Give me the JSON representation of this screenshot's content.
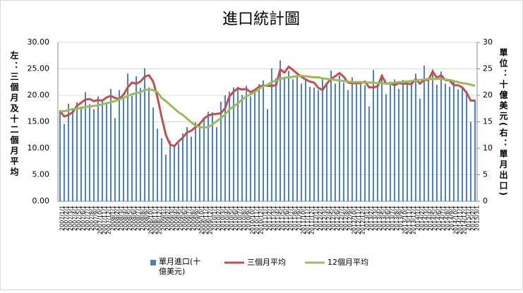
{
  "chart_data": {
    "type": "bar-line",
    "title": "進口統計圖",
    "y_label": "左：三個月及十二個月平均",
    "y2_label": "單位：十億美元(右：單月出口)",
    "categories": [
      "2007/1/1",
      "2007/2/1",
      "2007/3/1",
      "2007/4/1",
      "2007/5/1",
      "2007/6/1",
      "2007/7/1",
      "2007/8/1",
      "2007/9/1",
      "2007/10/1",
      "2007/11/1",
      "2007/12/1",
      "2008/1/1",
      "2008/2/1",
      "2008/3/1",
      "2008/4/1",
      "2008/5/1",
      "2008/6/1",
      "2008/7/1",
      "2008/8/1",
      "2008/9/1",
      "2008/10/1",
      "2008/11/1",
      "2008/12/1",
      "2009/1/1",
      "2009/2/1",
      "2009/3/1",
      "2009/4/1",
      "2009/5/1",
      "2009/6/1",
      "2009/7/1",
      "2009/8/1",
      "2009/9/1",
      "2009/10/1",
      "2009/11/1",
      "2009/12/1",
      "2010/1/1",
      "2010/2/1",
      "2010/3/1",
      "2010/4/1",
      "2010/5/1",
      "2010/6/1",
      "2010/7/1",
      "2010/8/1",
      "2010/9/1",
      "2010/10/1",
      "2010/11/1",
      "2010/12/1",
      "2011/1/1",
      "2011/2/1",
      "2011/3/1",
      "2011/4/1",
      "2011/5/1",
      "2011/6/1",
      "2011/7/1",
      "2011/8/1",
      "2011/9/1",
      "2011/10/1",
      "2011/11/1",
      "2011/12/1",
      "2012/1/1",
      "2012/2/1",
      "2012/3/1",
      "2012/4/1",
      "2012/5/1",
      "2012/6/1",
      "2012/7/1",
      "2012/8/1",
      "2012/9/1",
      "2012/10/1",
      "2012/11/1",
      "2012/12/1",
      "2013/1/1",
      "2013/2/1",
      "2013/3/1",
      "2013/4/1",
      "2013/5/1",
      "2013/6/1",
      "2013/7/1",
      "2013/8/1",
      "2013/9/1",
      "2013/10/1",
      "2013/11/1",
      "2013/12/1",
      "2014/1/1",
      "2014/2/1",
      "2014/3/1",
      "2014/4/1",
      "2014/5/1",
      "2014/6/1",
      "2014/7/1",
      "2014/8/1",
      "2014/9/1",
      "2014/10/1",
      "2014/11/1",
      "2014/12/1",
      "2015/1/1",
      "2015/2/1",
      "2015/3/1"
    ],
    "series": [
      {
        "name": "單月進口(十億美元)",
        "type": "bar",
        "color": "#4f81bd",
        "values": [
          17.2,
          14.6,
          18.4,
          17.3,
          18.7,
          17.9,
          20.6,
          18.3,
          17.4,
          19.8,
          18.8,
          18.5,
          21.2,
          15.7,
          21.0,
          19.5,
          24.1,
          19.9,
          23.6,
          21.4,
          25.1,
          21.5,
          17.7,
          13.7,
          11.9,
          8.8,
          11.4,
          10.5,
          10.9,
          12.8,
          14.0,
          12.2,
          14.9,
          14.4,
          15.6,
          16.9,
          16.8,
          14.0,
          18.8,
          20.0,
          20.7,
          21.5,
          21.6,
          20.1,
          21.8,
          19.8,
          21.0,
          22.1,
          22.8,
          17.4,
          25.1,
          23.2,
          26.6,
          23.4,
          24.6,
          23.0,
          23.5,
          22.2,
          23.1,
          21.6,
          21.5,
          21.0,
          23.3,
          22.0,
          24.7,
          22.2,
          23.8,
          22.4,
          21.0,
          23.4,
          22.5,
          22.1,
          21.9,
          17.9,
          24.8,
          22.3,
          24.0,
          20.2,
          22.6,
          23.0,
          21.2,
          22.9,
          22.5,
          22.8,
          24.1,
          19.4,
          25.6,
          23.1,
          24.9,
          22.0,
          24.5,
          22.2,
          21.6,
          22.9,
          21.1,
          21.6,
          20.3,
          15.0,
          19.2
        ]
      },
      {
        "name": "三個月平均",
        "type": "line",
        "axis": "y2",
        "color": "#c0504d",
        "values": [
          17.0,
          16.0,
          16.3,
          16.8,
          18.0,
          18.6,
          19.2,
          19.3,
          18.9,
          19.1,
          19.0,
          19.6,
          19.9,
          19.5,
          19.3,
          20.1,
          21.5,
          22.4,
          22.2,
          22.6,
          23.5,
          23.8,
          22.6,
          19.7,
          15.9,
          12.5,
          10.7,
          10.4,
          11.3,
          12.0,
          13.0,
          13.3,
          14.0,
          14.6,
          15.6,
          16.2,
          16.4,
          16.5,
          16.6,
          17.6,
          19.8,
          20.7,
          21.3,
          21.1,
          21.2,
          20.6,
          21.0,
          21.6,
          21.9,
          21.8,
          21.8,
          21.9,
          24.9,
          24.3,
          25.4,
          24.8,
          24.1,
          23.5,
          23.0,
          22.6,
          22.4,
          21.4,
          21.0,
          22.2,
          23.1,
          23.6,
          24.2,
          23.5,
          22.4,
          22.3,
          22.3,
          22.3,
          22.6,
          21.5,
          21.5,
          21.7,
          23.7,
          22.2,
          22.3,
          21.9,
          22.3,
          22.2,
          22.2,
          22.1,
          23.1,
          22.2,
          22.9,
          22.9,
          24.5,
          23.3,
          23.8,
          22.9,
          22.8,
          21.9,
          21.9,
          21.5,
          20.5,
          19.0,
          19.0
        ]
      },
      {
        "name": "12個月平均",
        "type": "line",
        "axis": "y2",
        "color": "#9bbb59",
        "values": [
          17.0,
          17.0,
          17.2,
          17.4,
          17.5,
          17.6,
          17.8,
          17.9,
          18.0,
          18.1,
          18.3,
          18.5,
          18.7,
          18.9,
          19.2,
          19.5,
          19.9,
          20.2,
          20.4,
          20.6,
          21.0,
          21.1,
          21.0,
          20.6,
          19.5,
          18.9,
          18.2,
          17.5,
          16.8,
          16.3,
          15.6,
          14.9,
          14.3,
          14.0,
          13.9,
          14.0,
          14.5,
          15.1,
          15.7,
          16.4,
          17.3,
          17.9,
          18.5,
          19.2,
          19.8,
          20.2,
          20.6,
          21.2,
          21.7,
          22.0,
          22.5,
          22.8,
          23.1,
          23.3,
          23.4,
          23.5,
          23.6,
          23.7,
          23.6,
          23.5,
          23.4,
          23.4,
          23.2,
          23.1,
          23.0,
          22.9,
          22.8,
          22.7,
          22.6,
          22.5,
          22.5,
          22.5,
          22.4,
          22.4,
          22.4,
          22.3,
          22.3,
          22.2,
          22.3,
          22.4,
          22.5,
          22.5,
          22.6,
          22.7,
          22.8,
          22.9,
          23.0,
          23.1,
          23.1,
          23.1,
          23.1,
          23.0,
          22.9,
          22.7,
          22.5,
          22.3,
          22.2,
          22.0,
          21.8
        ]
      }
    ],
    "ylim": [
      0,
      30
    ],
    "yticks": [
      {
        "value": 0,
        "label": "0.00"
      },
      {
        "value": 5,
        "label": "5.00"
      },
      {
        "value": 10,
        "label": "10.00"
      },
      {
        "value": 15,
        "label": "15.00"
      },
      {
        "value": 20,
        "label": "20.00"
      },
      {
        "value": 25,
        "label": "25.00"
      },
      {
        "value": 30,
        "label": "30.00"
      }
    ],
    "y2lim": [
      0,
      30
    ],
    "y2ticks": [
      0,
      5,
      10,
      15,
      20,
      25,
      30
    ],
    "grid": true
  }
}
